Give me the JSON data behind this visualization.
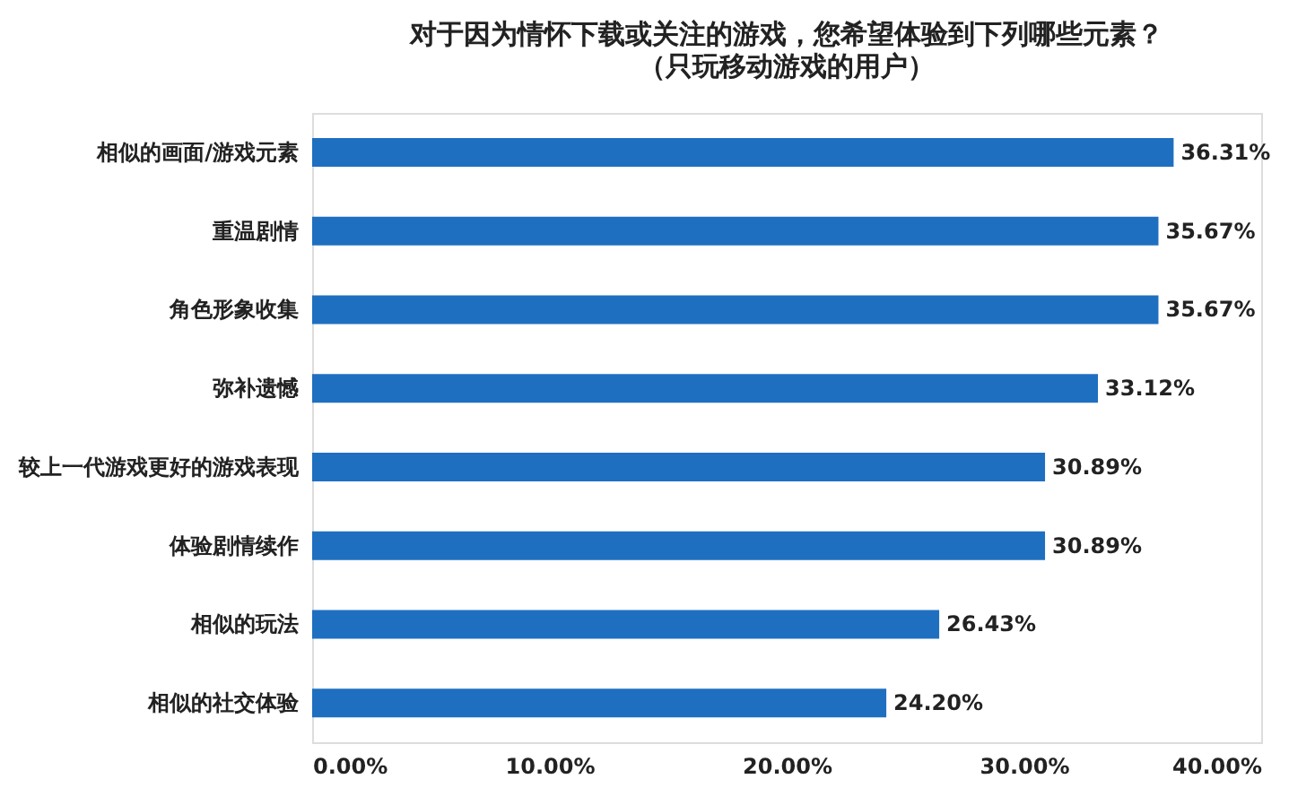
{
  "chart_data": {
    "type": "bar",
    "orientation": "horizontal",
    "title": "对于因为情怀下载或关注的游戏，您希望体验到下列哪些元素？",
    "subtitle": "（只玩移动游戏的用户）",
    "categories": [
      "相似的画面/游戏元素",
      "重温剧情",
      "角色形象收集",
      "弥补遗憾",
      "较上一代游戏更好的游戏表现",
      "体验剧情续作",
      "相似的玩法",
      "相似的社交体验"
    ],
    "values": [
      36.31,
      35.67,
      35.67,
      33.12,
      30.89,
      30.89,
      26.43,
      24.2
    ],
    "value_labels": [
      "36.31%",
      "35.67%",
      "35.67%",
      "33.12%",
      "30.89%",
      "30.89%",
      "26.43%",
      "24.20%"
    ],
    "color": "#1f6fc0",
    "xlim": [
      0,
      40
    ],
    "xticks": [
      {
        "value": 0,
        "label": "0.00%"
      },
      {
        "value": 10,
        "label": "10.00%"
      },
      {
        "value": 20,
        "label": "20.00%"
      },
      {
        "value": 30,
        "label": "30.00%"
      },
      {
        "value": 40,
        "label": "40.00%"
      }
    ],
    "grid": false
  }
}
